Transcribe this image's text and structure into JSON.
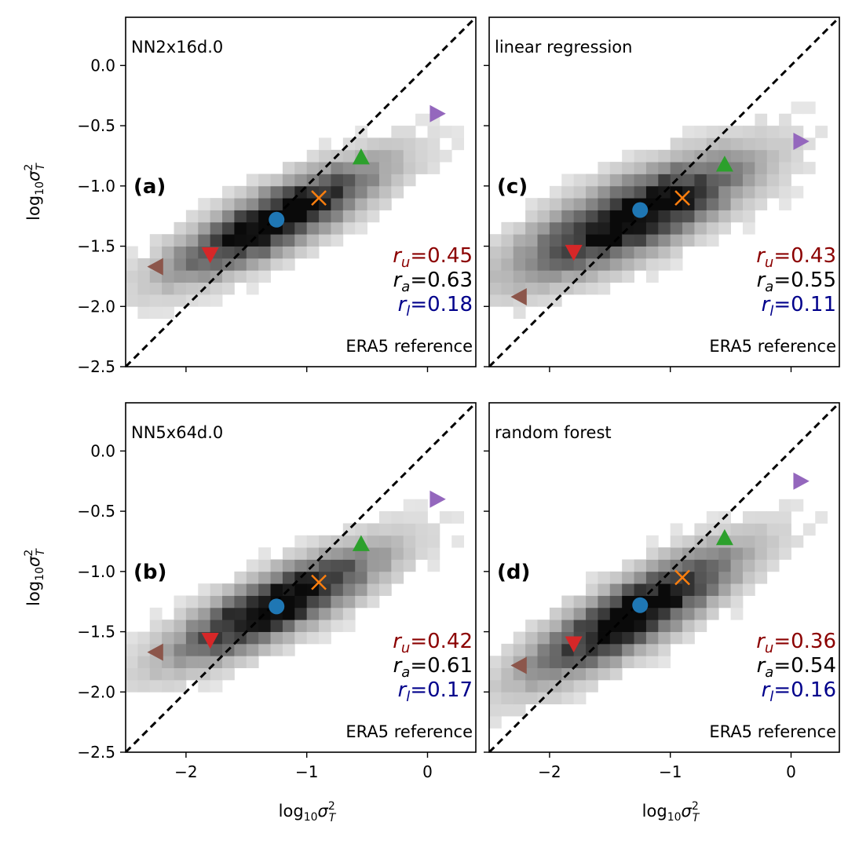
{
  "chart_data": [
    {
      "type": "heatmap",
      "panel_label": "(a)",
      "title": "NN2x16d.0",
      "reference_label": "ERA5 reference",
      "ylabel_html": "log10σ²_T",
      "xlim": [
        -2.5,
        0.4
      ],
      "ylim": [
        -2.5,
        0.4
      ],
      "xticks": [
        -2,
        -1,
        0
      ],
      "yticks": [
        -2.5,
        -2.0,
        -1.5,
        -1.0,
        -0.5,
        0.0
      ],
      "ytick_labels": [
        "−2.5",
        "−2.0",
        "−1.5",
        "−1.0",
        "−0.5",
        "0.0"
      ],
      "stats": [
        {
          "sym": "r",
          "sub": "u",
          "value": "0.45",
          "color": "#8b0000"
        },
        {
          "sym": "r",
          "sub": "a",
          "value": "0.63",
          "color": "#000000"
        },
        {
          "sym": "r",
          "sub": "l",
          "value": "0.18",
          "color": "#00008b"
        }
      ],
      "markers": [
        {
          "shape": "circle",
          "color": "#1f77b4",
          "x": -1.25,
          "y": -1.28
        },
        {
          "shape": "x",
          "color": "#ff7f0e",
          "x": -0.9,
          "y": -1.1
        },
        {
          "shape": "triangle-up",
          "color": "#2ca02c",
          "x": -0.55,
          "y": -0.76
        },
        {
          "shape": "triangle-down",
          "color": "#d62728",
          "x": -1.8,
          "y": -1.57
        },
        {
          "shape": "triangle-right",
          "color": "#9467bd",
          "x": 0.08,
          "y": -0.4
        },
        {
          "shape": "triangle-left",
          "color": "#8c564b",
          "x": -2.25,
          "y": -1.67
        }
      ],
      "cloud": {
        "cx": -1.25,
        "cy": -1.28,
        "slope": 0.45,
        "spread": 0.55,
        "width": 0.2
      }
    },
    {
      "type": "heatmap",
      "panel_label": "(c)",
      "title": "linear regression",
      "reference_label": "ERA5 reference",
      "xlim": [
        -2.5,
        0.4
      ],
      "ylim": [
        -2.5,
        0.4
      ],
      "xticks": [
        -2,
        -1,
        0
      ],
      "yticks": [
        -2.5,
        -2.0,
        -1.5,
        -1.0,
        -0.5,
        0.0
      ],
      "stats": [
        {
          "sym": "r",
          "sub": "u",
          "value": "0.43",
          "color": "#8b0000"
        },
        {
          "sym": "r",
          "sub": "a",
          "value": "0.55",
          "color": "#000000"
        },
        {
          "sym": "r",
          "sub": "l",
          "value": "0.11",
          "color": "#00008b"
        }
      ],
      "markers": [
        {
          "shape": "circle",
          "color": "#1f77b4",
          "x": -1.25,
          "y": -1.2
        },
        {
          "shape": "x",
          "color": "#ff7f0e",
          "x": -0.9,
          "y": -1.1
        },
        {
          "shape": "triangle-up",
          "color": "#2ca02c",
          "x": -0.55,
          "y": -0.82
        },
        {
          "shape": "triangle-down",
          "color": "#d62728",
          "x": -1.8,
          "y": -1.55
        },
        {
          "shape": "triangle-right",
          "color": "#9467bd",
          "x": 0.08,
          "y": -0.63
        },
        {
          "shape": "triangle-left",
          "color": "#8c564b",
          "x": -2.25,
          "y": -1.92
        }
      ],
      "cloud": {
        "cx": -1.3,
        "cy": -1.25,
        "slope": 0.4,
        "spread": 0.6,
        "width": 0.24
      }
    },
    {
      "type": "heatmap",
      "panel_label": "(b)",
      "title": "NN5x64d.0",
      "reference_label": "ERA5 reference",
      "ylabel_html": "log10σ²_T",
      "xlabel_html": "log10σ²_T",
      "xlim": [
        -2.5,
        0.4
      ],
      "ylim": [
        -2.5,
        0.4
      ],
      "xticks": [
        -2,
        -1,
        0
      ],
      "xtick_labels": [
        "−2",
        "−1",
        "0"
      ],
      "yticks": [
        -2.5,
        -2.0,
        -1.5,
        -1.0,
        -0.5,
        0.0
      ],
      "ytick_labels": [
        "−2.5",
        "−2.0",
        "−1.5",
        "−1.0",
        "−0.5",
        "0.0"
      ],
      "stats": [
        {
          "sym": "r",
          "sub": "u",
          "value": "0.42",
          "color": "#8b0000"
        },
        {
          "sym": "r",
          "sub": "a",
          "value": "0.61",
          "color": "#000000"
        },
        {
          "sym": "r",
          "sub": "l",
          "value": "0.17",
          "color": "#00008b"
        }
      ],
      "markers": [
        {
          "shape": "circle",
          "color": "#1f77b4",
          "x": -1.25,
          "y": -1.29
        },
        {
          "shape": "x",
          "color": "#ff7f0e",
          "x": -0.9,
          "y": -1.09
        },
        {
          "shape": "triangle-up",
          "color": "#2ca02c",
          "x": -0.55,
          "y": -0.77
        },
        {
          "shape": "triangle-down",
          "color": "#d62728",
          "x": -1.8,
          "y": -1.57
        },
        {
          "shape": "triangle-right",
          "color": "#9467bd",
          "x": 0.08,
          "y": -0.4
        },
        {
          "shape": "triangle-left",
          "color": "#8c564b",
          "x": -2.25,
          "y": -1.67
        }
      ],
      "cloud": {
        "cx": -1.25,
        "cy": -1.28,
        "slope": 0.44,
        "spread": 0.55,
        "width": 0.2
      }
    },
    {
      "type": "heatmap",
      "panel_label": "(d)",
      "title": "random forest",
      "reference_label": "ERA5 reference",
      "xlabel_html": "log10σ²_T",
      "xlim": [
        -2.5,
        0.4
      ],
      "ylim": [
        -2.5,
        0.4
      ],
      "xticks": [
        -2,
        -1,
        0
      ],
      "xtick_labels": [
        "−2",
        "−1",
        "0"
      ],
      "yticks": [
        -2.5,
        -2.0,
        -1.5,
        -1.0,
        -0.5,
        0.0
      ],
      "stats": [
        {
          "sym": "r",
          "sub": "u",
          "value": "0.36",
          "color": "#8b0000"
        },
        {
          "sym": "r",
          "sub": "a",
          "value": "0.54",
          "color": "#000000"
        },
        {
          "sym": "r",
          "sub": "l",
          "value": "0.16",
          "color": "#00008b"
        }
      ],
      "markers": [
        {
          "shape": "circle",
          "color": "#1f77b4",
          "x": -1.25,
          "y": -1.28
        },
        {
          "shape": "x",
          "color": "#ff7f0e",
          "x": -0.9,
          "y": -1.05
        },
        {
          "shape": "triangle-up",
          "color": "#2ca02c",
          "x": -0.55,
          "y": -0.72
        },
        {
          "shape": "triangle-down",
          "color": "#d62728",
          "x": -1.8,
          "y": -1.6
        },
        {
          "shape": "triangle-right",
          "color": "#9467bd",
          "x": 0.08,
          "y": -0.25
        },
        {
          "shape": "triangle-left",
          "color": "#8c564b",
          "x": -2.25,
          "y": -1.78
        }
      ],
      "cloud": {
        "cx": -1.3,
        "cy": -1.35,
        "slope": 0.52,
        "spread": 0.55,
        "width": 0.22
      }
    }
  ]
}
